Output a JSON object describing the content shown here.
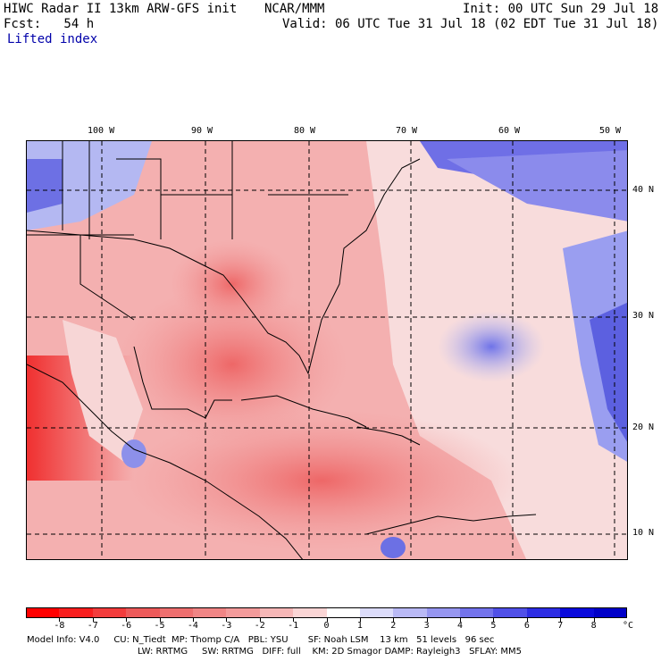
{
  "header": {
    "left_line1": "HIWC Radar II 13km ARW-GFS init",
    "center_line1": "NCAR/MMM",
    "right_line1": "Init: 00 UTC Sun 29 Jul 18",
    "fcst_line": "Fcst:   54 h",
    "valid_line": "Valid: 06 UTC Tue 31 Jul 18 (02 EDT Tue 31 Jul 18)",
    "field": "Lifted index"
  },
  "map": {
    "lon_labels": [
      "100 W",
      "90 W",
      "80 W",
      "70 W",
      "60 W",
      "50 W"
    ],
    "lat_labels": [
      "40 N",
      "30 N",
      "20 N",
      "10 N"
    ]
  },
  "colorbar": {
    "tick_labels": [
      "-8",
      "-7",
      "-6",
      "-5",
      "-4",
      "-3",
      "-2",
      "-1",
      "0",
      "1",
      "2",
      "3",
      "4",
      "5",
      "6",
      "7",
      "8"
    ],
    "unit": "°C",
    "colors": [
      "#ff0000",
      "#f81e1e",
      "#f23c3c",
      "#ed5a5a",
      "#ee6f6f",
      "#f08585",
      "#f39b9b",
      "#f6b7b7",
      "#fad5d5",
      "#ffffff",
      "#dcdcfa",
      "#b9b9f5",
      "#9696f0",
      "#7373ec",
      "#5050e8",
      "#2d2de4",
      "#0a0adc",
      "#0000c8"
    ]
  },
  "footer": {
    "line1": "Model Info: V4.0     CU: N_Tiedt  MP: Thomp C/A   PBL: YSU       SF: Noah LSM    13 km   51 levels   96 sec",
    "line2": "LW: RRTMG     SW: RRTMG   DIFF: full    KM: 2D Smagor DAMP: Rayleigh3   SFLAY: MM5"
  }
}
